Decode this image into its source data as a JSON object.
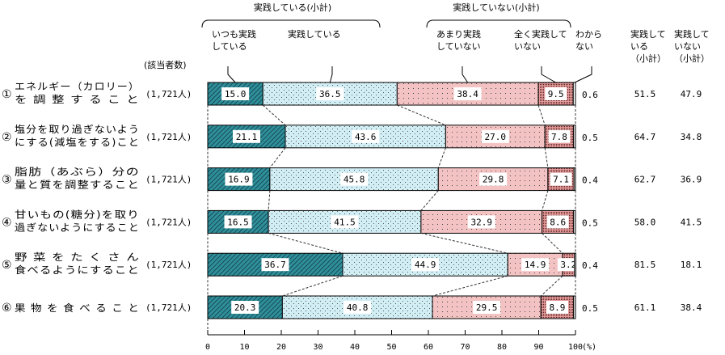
{
  "chart_data": {
    "type": "bar",
    "orientation": "horizontal",
    "stacked": true,
    "xlim": [
      0,
      100
    ],
    "x_ticks": [
      "0",
      "10",
      "20",
      "30",
      "40",
      "50",
      "60",
      "70",
      "80",
      "90",
      "100"
    ],
    "x_unit": "(%)",
    "count_header": "(該当者数)",
    "group_headers": {
      "practicing": "実践している(小計)",
      "not_practicing": "実践していない(小計)"
    },
    "series": [
      {
        "name": "いつも実践 している",
        "name_lines": [
          "いつも実践",
          "している"
        ],
        "color": "#2f8f9a",
        "values": [
          15.0,
          21.1,
          16.9,
          16.5,
          36.7,
          20.3
        ]
      },
      {
        "name": "実践している",
        "name_lines": [
          "実践している"
        ],
        "color": "#d2eef5",
        "values": [
          36.5,
          43.6,
          45.8,
          41.5,
          44.9,
          40.8
        ]
      },
      {
        "name": "あまり実践 していない",
        "name_lines": [
          "あまり実践",
          "していない"
        ],
        "color": "#f3c3c3",
        "values": [
          38.4,
          27.0,
          29.8,
          32.9,
          14.9,
          29.5
        ]
      },
      {
        "name": "全く実践して いない",
        "name_lines": [
          "全く実践して",
          "いない"
        ],
        "color": "#e39a9a",
        "values": [
          9.5,
          7.8,
          7.1,
          8.6,
          3.2,
          8.9
        ]
      },
      {
        "name": "わから ない",
        "name_lines": [
          "わから",
          "ない"
        ],
        "color": "#ffffff",
        "values": [
          0.6,
          0.5,
          0.4,
          0.5,
          0.4,
          0.5
        ]
      }
    ],
    "value_labels": [
      [
        "15.0",
        "36.5",
        "38.4",
        "9.5",
        "0.6"
      ],
      [
        "21.1",
        "43.6",
        "27.0",
        "7.8",
        "0.5"
      ],
      [
        "16.9",
        "45.8",
        "29.8",
        "7.1",
        "0.4"
      ],
      [
        "16.5",
        "41.5",
        "32.9",
        "8.6",
        "0.5"
      ],
      [
        "36.7",
        "44.9",
        "14.9",
        "3.2",
        "0.4"
      ],
      [
        "20.3",
        "40.8",
        "29.5",
        "8.9",
        "0.5"
      ]
    ],
    "subtotal_headers": [
      [
        "実践して",
        "いる",
        "（小計）"
      ],
      [
        "実践して",
        "いない",
        "（小計）"
      ]
    ],
    "categories": [
      {
        "num": "①",
        "lines": [
          "エネルギー（カロリー）",
          "を 調 整 す る こ と"
        ],
        "count": "(1,721人)",
        "practicing": "51.5",
        "not_practicing": "47.9"
      },
      {
        "num": "②",
        "lines": [
          "塩分を取り過ぎないよう",
          "にする(減塩をする)こと"
        ],
        "count": "(1,721人)",
        "practicing": "64.7",
        "not_practicing": "34.8"
      },
      {
        "num": "③",
        "lines": [
          "脂肪（あぶら）分の",
          "量と質を調整すること"
        ],
        "count": "(1,721人)",
        "practicing": "62.7",
        "not_practicing": "36.9"
      },
      {
        "num": "④",
        "lines": [
          "甘いもの(糖分)を取り",
          "過ぎないようにすること"
        ],
        "count": "(1,721人)",
        "practicing": "58.0",
        "not_practicing": "41.5"
      },
      {
        "num": "⑤",
        "lines": [
          "野 菜 を た く さ ん",
          "食べるようにすること"
        ],
        "count": "(1,721人)",
        "practicing": "81.5",
        "not_practicing": "18.1"
      },
      {
        "num": "⑥",
        "lines": [
          "果 物 を 食 べ る こ と"
        ],
        "count": "(1,721人)",
        "practicing": "61.1",
        "not_practicing": "38.4"
      }
    ]
  }
}
